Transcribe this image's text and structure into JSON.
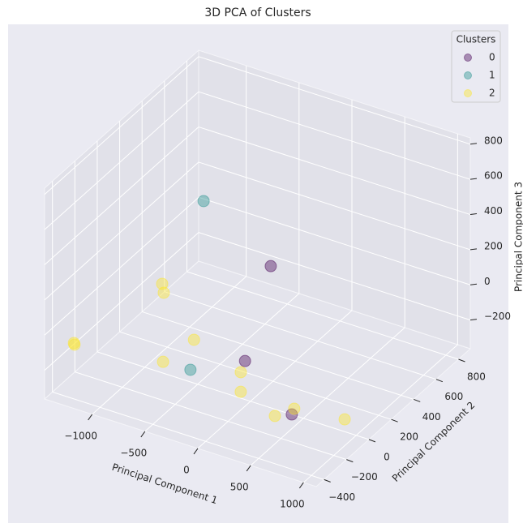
{
  "chart_data": {
    "type": "scatter3d",
    "title": "3D PCA of Clusters",
    "xlabel": "Principal Component 1",
    "ylabel": "Principal Component 2",
    "zlabel": "Principal Component 3",
    "xlim": [
      -1450,
      1120
    ],
    "ylim": [
      -470,
      905
    ],
    "zlim": [
      -363,
      836
    ],
    "xticks": [
      {
        "value": -1000,
        "label": "−1000"
      },
      {
        "value": -500,
        "label": "−500"
      },
      0,
      500,
      1000
    ],
    "yticks": [
      {
        "value": -400,
        "label": "−400"
      },
      {
        "value": -200,
        "label": "−200"
      },
      0,
      200,
      400,
      600,
      800
    ],
    "zticks": [
      {
        "value": -200,
        "label": "−200"
      },
      0,
      200,
      400,
      600,
      800
    ],
    "grid": true,
    "legend_title": "Clusters",
    "legend_loc": "upper right",
    "series": [
      {
        "name": "0",
        "color": "#440154",
        "x": [
          -330,
          -283,
          452
        ],
        "y": [
          492,
          218,
          -58
        ],
        "z": [
          61,
          -313,
          -317
        ]
      },
      {
        "name": "1",
        "color": "#21918c",
        "x": [
          -820,
          -507
        ],
        "y": [
          355,
          -58
        ],
        "z": [
          414,
          -249
        ]
      },
      {
        "name": "2",
        "color": "#fde725",
        "x": [
          -1067,
          -1052,
          -1319,
          -1342,
          -766,
          -766,
          -250,
          -31,
          475,
          364,
          806
        ],
        "y": [
          218,
          218,
          -332,
          -305,
          218,
          -58,
          149,
          -58,
          -58,
          -126,
          80
        ],
        "z": [
          -26,
          -74,
          -98,
          -127,
          -286,
          -254,
          -331,
          -282,
          -280,
          -304,
          -355
        ]
      }
    ]
  }
}
